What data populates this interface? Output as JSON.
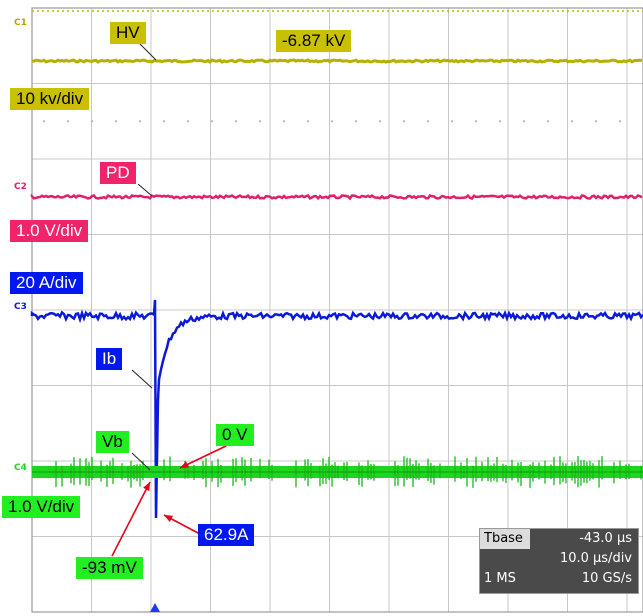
{
  "chart_data": {
    "type": "line",
    "title": "",
    "grid": true,
    "time_axis": {
      "divisions": 10,
      "time_per_div": "10.0 µs/div"
    },
    "series": [
      {
        "name": "HV",
        "channel": "C1",
        "color": "#b8b000",
        "scale": "10 kv/div",
        "readout": "-6.87 kV"
      },
      {
        "name": "PD",
        "channel": "C2",
        "color": "#e0206a",
        "scale": "1.0 V/div"
      },
      {
        "name": "Ib",
        "channel": "C3",
        "color": "#0a1ad8",
        "scale": "20 A/div",
        "readout": "62.9A"
      },
      {
        "name": "Vb",
        "channel": "C4",
        "color": "#1fd61f",
        "scale": "1.0 V/div",
        "readout_zero": "0 V",
        "readout_min": "-93 mV"
      }
    ]
  },
  "labels": {
    "hv": "HV",
    "hv_value": "-6.87 kV",
    "hv_scale": "10 kv/div",
    "pd": "PD",
    "pd_scale": "1.0 V/div",
    "ib_scale": "20 A/div",
    "ib": "Ib",
    "vb": "Vb",
    "vb_zero": "0 V",
    "vb_scale": "1.0 V/div",
    "ib_peak": "62.9A",
    "vb_min": "-93 mV"
  },
  "channel_tags": {
    "c1": "C1",
    "c2": "C2",
    "c3": "C3",
    "c4": "C4"
  },
  "timebase": {
    "title": "Tbase",
    "delay": "-43.0 µs",
    "per_div": "10.0 µs/div",
    "memory": "1 MS",
    "rate": "10 GS/s"
  }
}
